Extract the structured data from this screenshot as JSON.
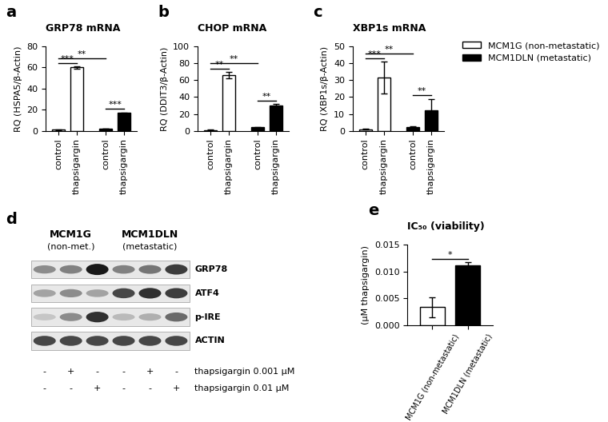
{
  "chart_data": [
    {
      "type": "bar",
      "panel": "a",
      "title": "GRP78 mRNA",
      "y_label": "RQ (HSPA5/β-Actin)",
      "categories": [
        "control",
        "thapsigargin",
        "control",
        "thapsigargin"
      ],
      "series": [
        {
          "name": "MCM1G (non-metastatic)",
          "color": "#ffffff",
          "values": [
            1,
            60,
            null,
            null
          ],
          "errors": [
            0.2,
            1,
            null,
            null
          ]
        },
        {
          "name": "MCM1DLN (metastatic)",
          "color": "#000000",
          "values": [
            null,
            null,
            2,
            17
          ],
          "errors": [
            null,
            null,
            0.3,
            0.5
          ]
        }
      ],
      "ylim": [
        0,
        80
      ],
      "yticks": [
        0,
        20,
        40,
        60,
        80
      ],
      "significance": [
        {
          "from": 0,
          "to": 1,
          "label": "***"
        },
        {
          "from": 2,
          "to": 3,
          "label": "***"
        },
        {
          "from": 0,
          "to": 2,
          "label": "**"
        }
      ]
    },
    {
      "type": "bar",
      "panel": "b",
      "title": "CHOP mRNA",
      "y_label": "RQ (DDIT3/β-Actin)",
      "categories": [
        "control",
        "thapsigargin",
        "control",
        "thapsigargin"
      ],
      "series": [
        {
          "name": "MCM1G (non-metastatic)",
          "color": "#ffffff",
          "values": [
            1,
            66,
            null,
            null
          ],
          "errors": [
            0.2,
            4,
            null,
            null
          ]
        },
        {
          "name": "MCM1DLN (metastatic)",
          "color": "#000000",
          "values": [
            null,
            null,
            4,
            30
          ],
          "errors": [
            null,
            null,
            0.5,
            2
          ]
        }
      ],
      "ylim": [
        0,
        100
      ],
      "yticks": [
        0,
        20,
        40,
        60,
        80,
        100
      ],
      "significance": [
        {
          "from": 0,
          "to": 1,
          "label": "**"
        },
        {
          "from": 2,
          "to": 3,
          "label": "**"
        },
        {
          "from": 0,
          "to": 2,
          "label": "**"
        }
      ]
    },
    {
      "type": "bar",
      "panel": "c",
      "title": "XBP1s mRNA",
      "y_label": "RQ (XBP1s/β-Actin)",
      "categories": [
        "control",
        "thapsigargin",
        "control",
        "thapsigargin"
      ],
      "series": [
        {
          "name": "MCM1G (non-metastatic)",
          "color": "#ffffff",
          "values": [
            1,
            31.5,
            null,
            null
          ],
          "errors": [
            0.2,
            9.5,
            null,
            null
          ]
        },
        {
          "name": "MCM1DLN (metastatic)",
          "color": "#000000",
          "values": [
            null,
            null,
            2.2,
            12
          ],
          "errors": [
            null,
            null,
            0.5,
            7
          ]
        }
      ],
      "ylim": [
        0,
        50
      ],
      "yticks": [
        0,
        10,
        20,
        30,
        40,
        50
      ],
      "legend": "right",
      "significance": [
        {
          "from": 0,
          "to": 1,
          "label": "***"
        },
        {
          "from": 2,
          "to": 3,
          "label": "**"
        },
        {
          "from": 0,
          "to": 2,
          "label": "**"
        }
      ]
    },
    {
      "type": "bar",
      "panel": "e",
      "title": "IC₅₀ (viability)",
      "y_label": "(µM thapsigargin)",
      "categories": [
        "MCM1G (non-metastatic)",
        "MCM1DLN (metastatic)"
      ],
      "values": [
        0.0033,
        0.0111
      ],
      "errors": [
        0.0019,
        0.0007
      ],
      "colors": [
        "#ffffff",
        "#000000"
      ],
      "ylim": [
        0,
        0.015
      ],
      "yticks": [
        {
          "value": 0,
          "label": "0.000"
        },
        {
          "value": 0.005,
          "label": "0.005"
        },
        {
          "value": 0.01,
          "label": "0.010"
        },
        {
          "value": 0.015,
          "label": "0.015"
        }
      ],
      "significance": [
        {
          "from": 0,
          "to": 1,
          "label": "*"
        }
      ]
    }
  ],
  "blot": {
    "panel": "d",
    "groups": [
      {
        "name": "MCM1G",
        "note": "(non-met.)",
        "lanes": [
          0,
          1,
          2
        ]
      },
      {
        "name": "MCM1DLN",
        "note": "(metastatic)",
        "lanes": [
          3,
          4,
          5
        ]
      }
    ],
    "rows": [
      {
        "label": "GRP78",
        "bands": [
          0.5,
          0.55,
          1.0,
          0.55,
          0.6,
          0.85
        ]
      },
      {
        "label": "ATF4",
        "bands": [
          0.4,
          0.5,
          0.4,
          0.8,
          0.9,
          0.85
        ]
      },
      {
        "label": "p-IRE",
        "bands": [
          0.25,
          0.5,
          0.9,
          0.3,
          0.35,
          0.65
        ]
      },
      {
        "label": "ACTIN",
        "bands": [
          0.8,
          0.8,
          0.8,
          0.8,
          0.8,
          0.8
        ]
      }
    ],
    "treatments": [
      {
        "label": "thapsigargin 0.001 µM",
        "signs": [
          "-",
          "+",
          "-",
          "-",
          "+",
          "-"
        ]
      },
      {
        "label": "thapsigargin 0.01 µM",
        "signs": [
          "-",
          "-",
          "+",
          "-",
          "-",
          "+"
        ]
      }
    ]
  }
}
